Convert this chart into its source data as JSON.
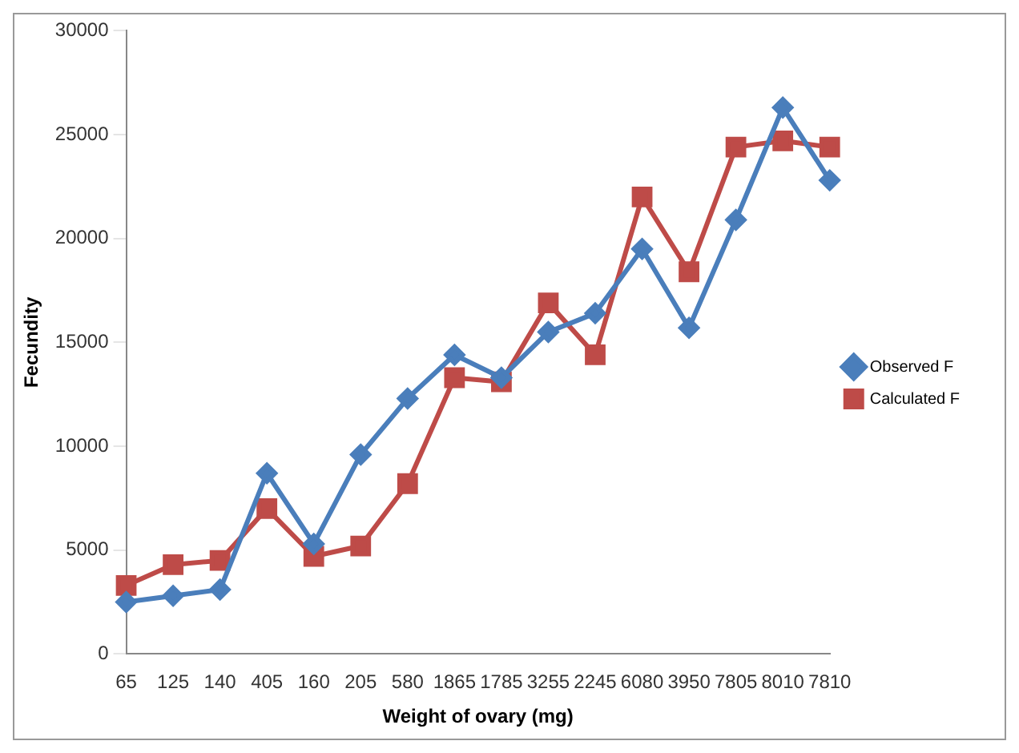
{
  "chart_data": {
    "type": "line",
    "xlabel": "Weight of ovary (mg)",
    "ylabel": "Fecundity",
    "categories": [
      "65",
      "125",
      "140",
      "405",
      "160",
      "205",
      "580",
      "1865",
      "1785",
      "3255",
      "2245",
      "6080",
      "3950",
      "7805",
      "8010",
      "7810"
    ],
    "series": [
      {
        "name": "Observed F",
        "color": "#4a7ebb",
        "marker": "diamond",
        "values": [
          2500,
          2800,
          3100,
          8700,
          5300,
          9600,
          12300,
          14400,
          13300,
          15500,
          16400,
          19500,
          15700,
          20900,
          26300,
          22800
        ]
      },
      {
        "name": "Calculated F",
        "color": "#be4b48",
        "marker": "square",
        "values": [
          3300,
          4300,
          4500,
          7000,
          4700,
          5200,
          8200,
          13300,
          13100,
          16900,
          14400,
          22000,
          18400,
          24400,
          24700,
          24400
        ]
      }
    ],
    "ylim": [
      0,
      30000
    ],
    "yticks": [
      0,
      5000,
      10000,
      15000,
      20000,
      25000,
      30000
    ],
    "grid": false,
    "legend": "right"
  }
}
